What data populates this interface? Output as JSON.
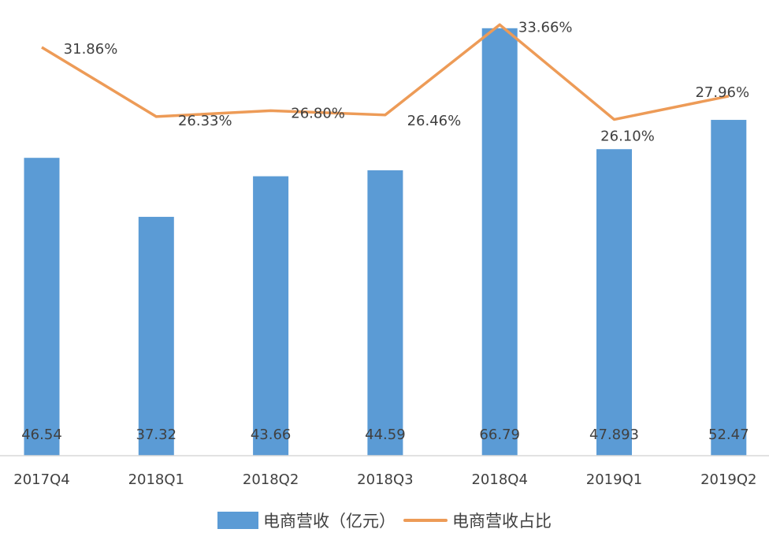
{
  "chart_data": {
    "type": "bar",
    "categories": [
      "2017Q4",
      "2018Q1",
      "2018Q2",
      "2018Q3",
      "2018Q4",
      "2019Q1",
      "2019Q2"
    ],
    "series": [
      {
        "name": "电商营收（亿元）",
        "type": "bar",
        "color": "#5b9bd5",
        "values": [
          46.54,
          37.32,
          43.66,
          44.59,
          66.79,
          47.893,
          52.47
        ],
        "labels": [
          "46.54",
          "37.32",
          "43.66",
          "44.59",
          "66.79",
          "47.893",
          "52.47"
        ]
      },
      {
        "name": "电商营收占比",
        "type": "line",
        "color": "#ed9b57",
        "axis": "secondary",
        "values": [
          31.86,
          26.33,
          26.8,
          26.46,
          33.66,
          26.1,
          27.96
        ],
        "labels": [
          "31.86%",
          "26.33%",
          "26.80%",
          "26.46%",
          "33.66%",
          "26.10%",
          "27.96%"
        ]
      }
    ],
    "title": "",
    "xlabel": "",
    "ylabel": "",
    "ylim": [
      0,
      71.2
    ],
    "y2lim": [
      -0.72,
      35.63
    ],
    "grid": false,
    "legend_position": "bottom"
  }
}
